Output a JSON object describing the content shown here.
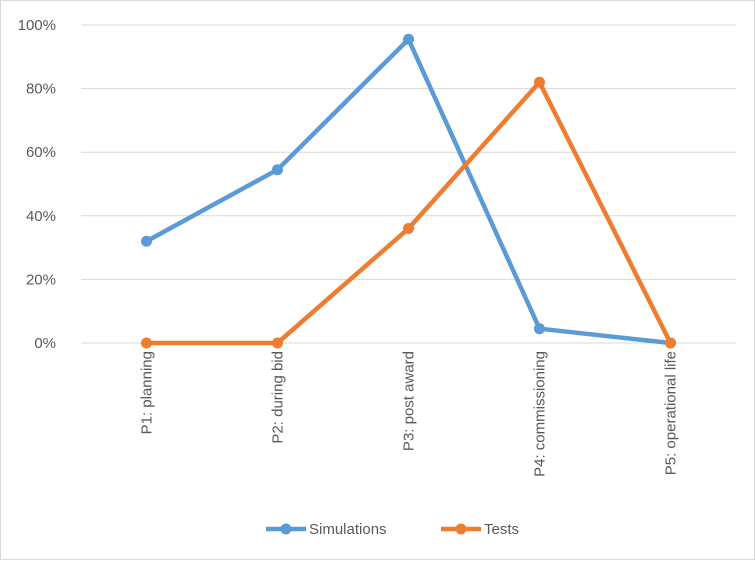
{
  "chart_data": {
    "type": "line",
    "categories": [
      "P1: planning",
      "P2:  during bid",
      "P3: post award",
      "P4: commissioning",
      "P5: operational life"
    ],
    "series": [
      {
        "name": "Simulations",
        "values": [
          32,
          54.5,
          95.5,
          4.5,
          0
        ],
        "color": "#5b9bd5"
      },
      {
        "name": "Tests",
        "values": [
          0,
          0,
          36,
          82,
          0
        ],
        "color": "#ed7d31"
      }
    ],
    "ylim": [
      0,
      100
    ],
    "yticks": [
      {
        "value": 0,
        "label": "0%"
      },
      {
        "value": 20,
        "label": "20%"
      },
      {
        "value": 40,
        "label": "40%"
      },
      {
        "value": 60,
        "label": "60%"
      },
      {
        "value": 80,
        "label": "80%"
      },
      {
        "value": 100,
        "label": "100%"
      }
    ],
    "grid": true,
    "legend_position": "bottom",
    "gridline_color": "#d9d9d9",
    "tick_text_color": "#595959"
  }
}
